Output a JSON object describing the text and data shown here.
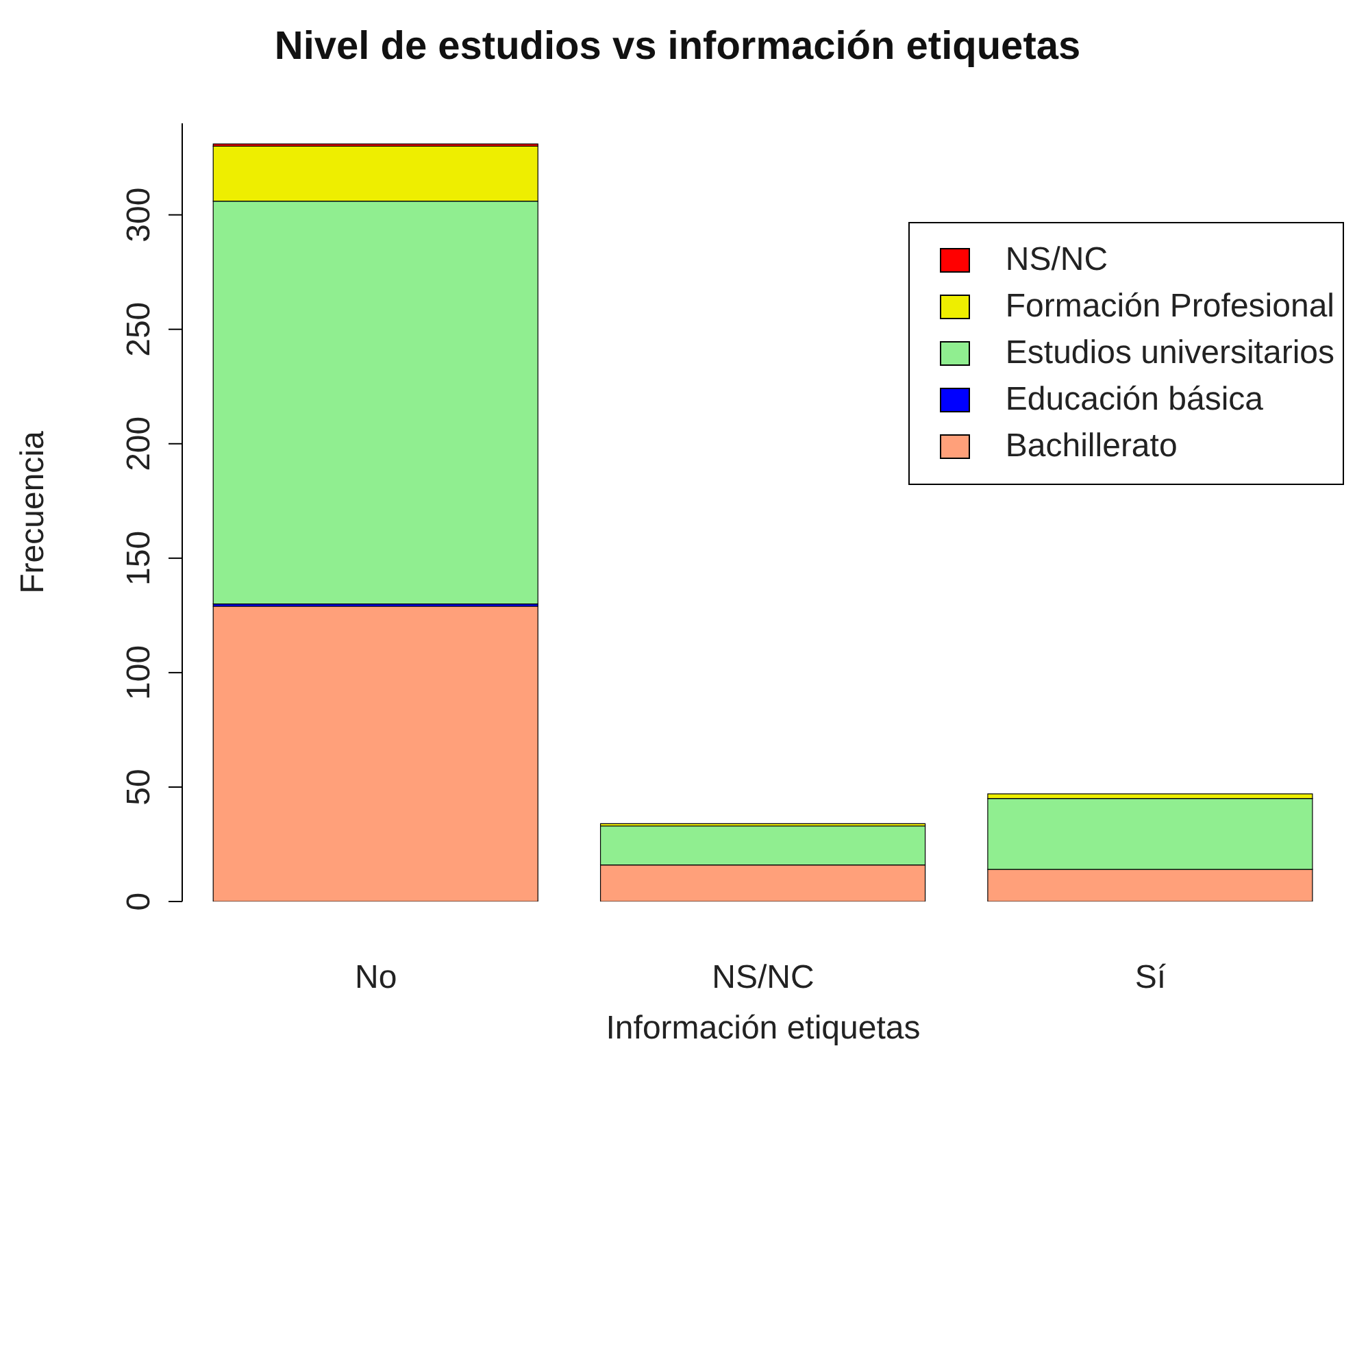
{
  "chart_data": {
    "type": "bar",
    "title": "Nivel de estudios vs información etiquetas",
    "xlabel": "Información etiquetas",
    "ylabel": "Frecuencia",
    "categories": [
      "No",
      "NS/NC",
      "Sí"
    ],
    "stacked": true,
    "series": [
      {
        "name": "Bachillerato",
        "color": "#ffa07a",
        "values": [
          129,
          16,
          14
        ]
      },
      {
        "name": "Educación básica",
        "color": "#0000ff",
        "values": [
          1,
          0,
          0
        ]
      },
      {
        "name": "Estudios universitarios",
        "color": "#90ee90",
        "values": [
          176,
          17,
          31
        ]
      },
      {
        "name": "Formación Profesional",
        "color": "#eeee00",
        "values": [
          24,
          1,
          2
        ]
      },
      {
        "name": "NS/NC",
        "color": "#ff0000",
        "values": [
          1,
          0,
          0
        ]
      }
    ],
    "ylim": [
      0,
      340
    ],
    "yticks": [
      0,
      50,
      100,
      150,
      200,
      250,
      300
    ],
    "legend": "top right",
    "grid": false
  }
}
